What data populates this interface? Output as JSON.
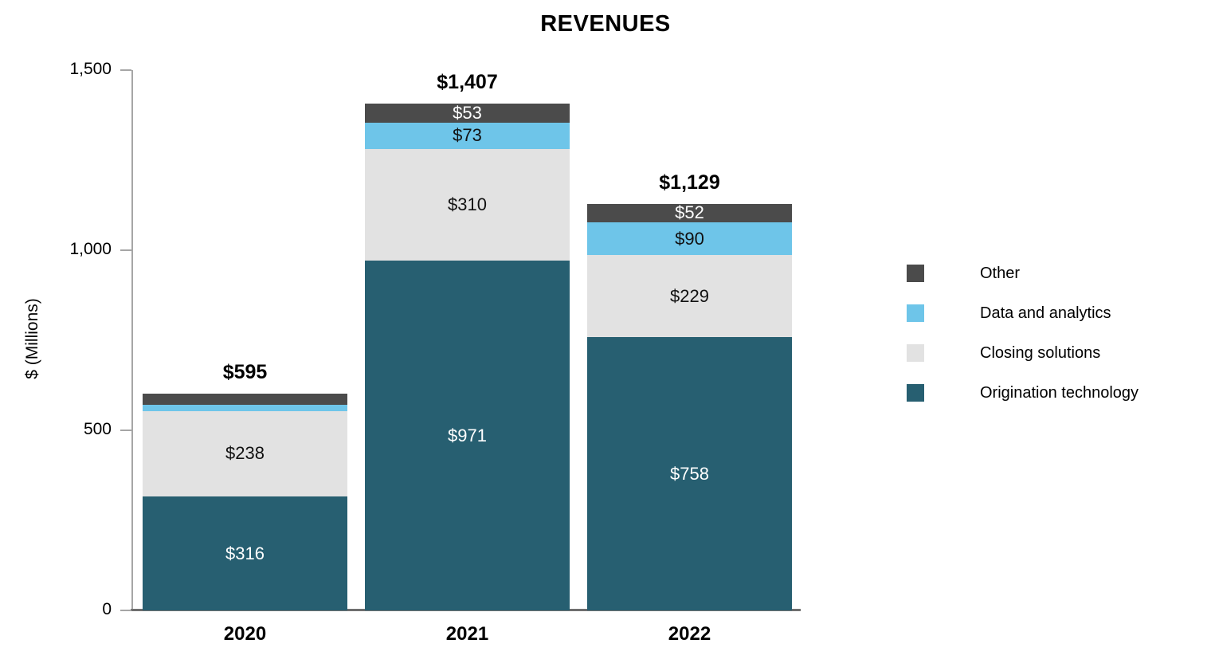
{
  "chart_data": {
    "type": "bar",
    "stacked": true,
    "title": "REVENUES",
    "ylabel": "$ (Millions)",
    "xlabel": "",
    "ylim": [
      0,
      1500
    ],
    "grid": false,
    "yticks": [
      {
        "value": 0,
        "label": "0"
      },
      {
        "value": 500,
        "label": "500"
      },
      {
        "value": 1000,
        "label": "1,000"
      },
      {
        "value": 1500,
        "label": "1,500"
      }
    ],
    "categories": [
      "2020",
      "2021",
      "2022"
    ],
    "totals": [
      {
        "value": 595,
        "label": "$595"
      },
      {
        "value": 1407,
        "label": "$1,407"
      },
      {
        "value": 1129,
        "label": "$1,129"
      }
    ],
    "series": [
      {
        "name": "Origination technology",
        "color": "#275f71",
        "label_color": "#ffffff",
        "values": [
          316,
          971,
          758
        ],
        "labels": [
          "$316",
          "$971",
          "$758"
        ]
      },
      {
        "name": "Closing solutions",
        "color": "#e2e2e2",
        "label_color": "#111111",
        "values": [
          238,
          310,
          229
        ],
        "labels": [
          "$238",
          "$310",
          "$229"
        ]
      },
      {
        "name": "Data and analytics",
        "color": "#6ec5e9",
        "label_color": "#111111",
        "values": [
          12,
          73,
          90
        ],
        "labels": [
          "",
          "$73",
          "$90"
        ]
      },
      {
        "name": "Other",
        "color": "#4b4b4b",
        "label_color": "#ffffff",
        "values": [
          29,
          53,
          52
        ],
        "labels": [
          "",
          "$53",
          "$52"
        ]
      }
    ],
    "legend": {
      "position": "right",
      "entries": [
        "Other",
        "Data and analytics",
        "Closing solutions",
        "Origination technology"
      ]
    },
    "axis_colors": {
      "axis_line": "#a6a6a6",
      "tick": "#a6a6a6",
      "baseline": "#6f6f6f"
    }
  }
}
